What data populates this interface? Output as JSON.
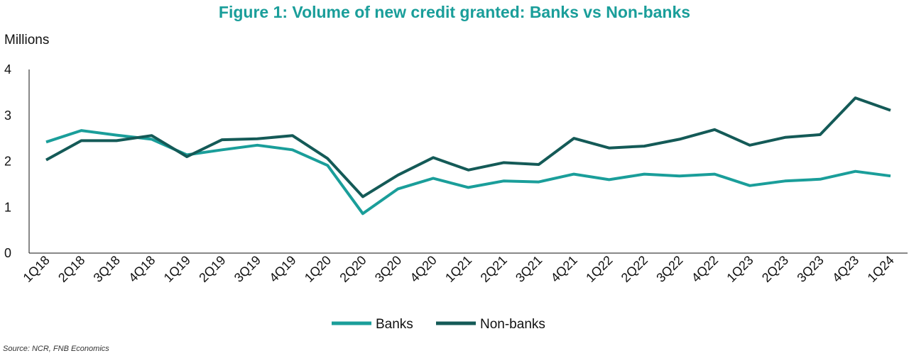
{
  "title": "Figure 1: Volume of new credit granted: Banks vs Non-banks",
  "source": "Source: NCR, FNB Economics",
  "chart_data": {
    "type": "line",
    "ylabel": "Millions",
    "xlabel": "",
    "ylim": [
      0,
      4
    ],
    "yticks": [
      "0",
      "1",
      "2",
      "3",
      "4"
    ],
    "grid": false,
    "legend_position": "bottom-center",
    "categories": [
      "1Q18",
      "2Q18",
      "3Q18",
      "4Q18",
      "1Q19",
      "2Q19",
      "3Q19",
      "4Q19",
      "1Q20",
      "2Q20",
      "3Q20",
      "4Q20",
      "1Q21",
      "2Q21",
      "3Q21",
      "4Q21",
      "1Q22",
      "2Q22",
      "3Q22",
      "4Q22",
      "1Q23",
      "2Q23",
      "3Q23",
      "4Q23",
      "1Q24"
    ],
    "series": [
      {
        "name": "Banks",
        "color": "#1a9e9a",
        "values": [
          2.42,
          2.67,
          2.57,
          2.48,
          2.14,
          2.25,
          2.35,
          2.25,
          1.91,
          0.86,
          1.4,
          1.63,
          1.43,
          1.57,
          1.55,
          1.72,
          1.6,
          1.72,
          1.68,
          1.72,
          1.47,
          1.57,
          1.61,
          1.78,
          1.68
        ]
      },
      {
        "name": "Non-banks",
        "color": "#145a57",
        "values": [
          2.03,
          2.45,
          2.45,
          2.56,
          2.1,
          2.47,
          2.49,
          2.56,
          2.06,
          1.23,
          1.7,
          2.08,
          1.81,
          1.97,
          1.93,
          2.5,
          2.29,
          2.33,
          2.48,
          2.69,
          2.35,
          2.52,
          2.58,
          3.38,
          3.11
        ]
      }
    ]
  }
}
